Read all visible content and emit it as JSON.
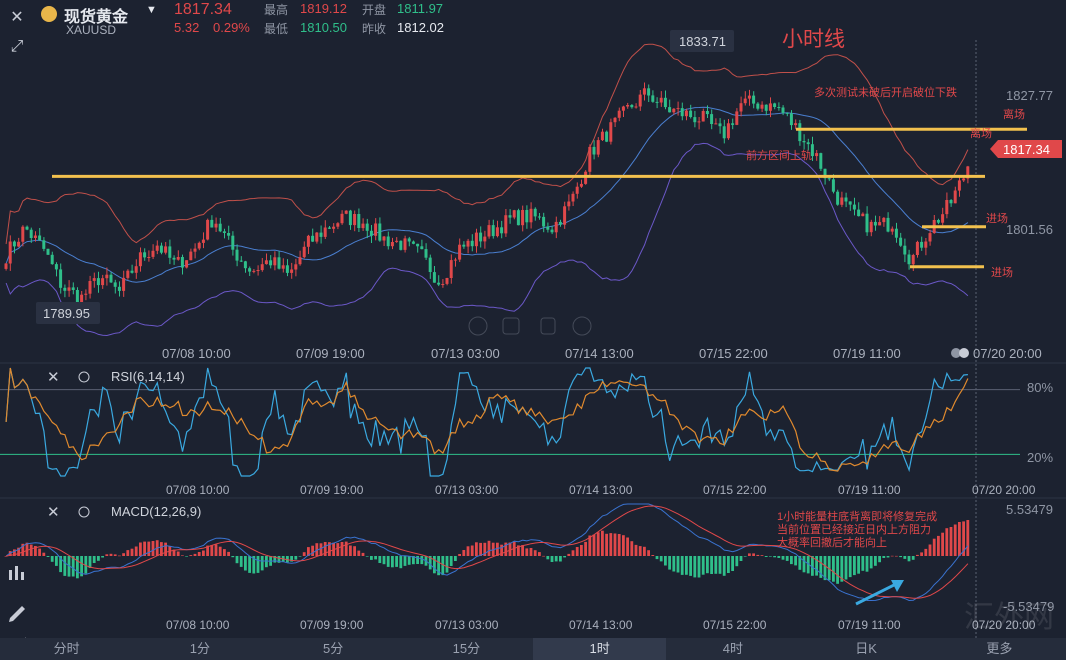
{
  "header": {
    "name": "现货黄金",
    "symbol": "XAUUSD",
    "price": "1817.34",
    "change": "5.32",
    "change_pct": "0.29%",
    "high_label": "最高",
    "high": "1819.12",
    "open_label": "开盘",
    "open": "1811.97",
    "low_label": "最低",
    "low": "1810.50",
    "prev_label": "昨收",
    "prev": "1812.02"
  },
  "price_panel": {
    "title": "小时线",
    "max_label": "1833.71",
    "min_label": "1789.95",
    "current_price_tag": "1817.34",
    "y_ticks": [
      "1827.77",
      "1801.56"
    ],
    "x_ticks": [
      "07/08 10:00",
      "07/09 19:00",
      "07/13 03:00",
      "07/14 13:00",
      "07/15 22:00",
      "07/19 11:00",
      "07/20 20:00"
    ],
    "annotations": {
      "multi_test": "多次测试未破后开启破位下跌",
      "exit1": "离场",
      "exit2": "离场",
      "prior_range": "前方区间上轨",
      "entry1": "进场",
      "entry2": "进场"
    }
  },
  "rsi_panel": {
    "title": "RSI(6,14,14)",
    "levels": [
      "80%",
      "20%"
    ],
    "x_ticks": [
      "07/08 10:00",
      "07/09 19:00",
      "07/13 03:00",
      "07/14 13:00",
      "07/15 22:00",
      "07/19 11:00",
      "07/20 20:00"
    ]
  },
  "macd_panel": {
    "title": "MACD(12,26,9)",
    "top": "5.53479",
    "bottom": "-5.53479",
    "note_line1": "1小时能量柱底背离即将修复完成",
    "note_line2": "当前位置已经接近日内上方阻力",
    "note_line3": "大概率回撤后才能向上",
    "x_ticks": [
      "07/08 10:00",
      "07/09 19:00",
      "07/13 03:00",
      "07/14 13:00",
      "07/15 22:00",
      "07/19 11:00",
      "07/20 20:00"
    ]
  },
  "tabs": [
    "分时",
    "1分",
    "5分",
    "15分",
    "1时",
    "4时",
    "日K",
    "更多"
  ],
  "active_tab": "1时",
  "watermark": "汇外网",
  "colors": {
    "up": "#e0484a",
    "down": "#2fbf8a",
    "bg": "#1c2230",
    "support": "#f2c14e",
    "accent_orange": "#e08a2e",
    "accent_blue": "#3aa9e0"
  },
  "chart_data": [
    {
      "type": "candlestick",
      "title": "小时线",
      "ylim": [
        1786,
        1837
      ],
      "x_tick_labels": [
        "07/08 10:00",
        "07/09 19:00",
        "07/13 03:00",
        "07/14 13:00",
        "07/15 22:00",
        "07/19 11:00",
        "07/20 20:00"
      ],
      "close_path": [
        1801,
        1806,
        1802,
        1795,
        1793,
        1797,
        1794,
        1800,
        1803,
        1799,
        1802,
        1808,
        1802,
        1798,
        1800,
        1797,
        1803,
        1806,
        1808,
        1807,
        1804,
        1803,
        1801,
        1796,
        1802,
        1804,
        1806,
        1808,
        1808,
        1806,
        1811,
        1820,
        1824,
        1828,
        1831,
        1828,
        1827,
        1826,
        1823,
        1829,
        1829,
        1828,
        1824,
        1819,
        1812,
        1808,
        1806,
        1807,
        1800,
        1806,
        1810,
        1817
      ],
      "high": 1833.71,
      "low": 1789.95,
      "last": 1817.34,
      "horizontal_levels": [
        1815.5,
        1824.2,
        1806.2,
        1798.8
      ]
    },
    {
      "type": "line",
      "title": "RSI(6,14,14)",
      "ylim": [
        0,
        100
      ],
      "levels": [
        80,
        20
      ]
    },
    {
      "type": "bar",
      "title": "MACD(12,26,9)",
      "ylim": [
        -5.53479,
        5.53479
      ]
    }
  ]
}
